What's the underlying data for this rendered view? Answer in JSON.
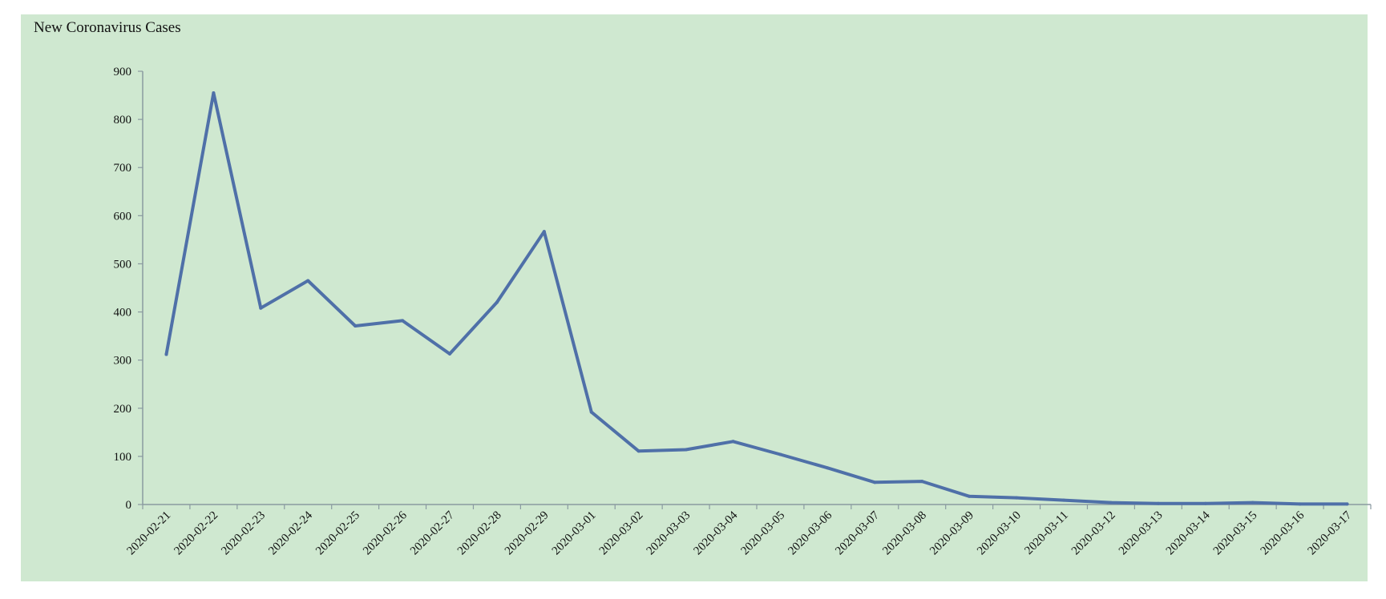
{
  "chart_data": {
    "type": "line",
    "title": "New Coronavirus Cases",
    "xlabel": "",
    "ylabel": "",
    "ylim": [
      0,
      900
    ],
    "y_ticks": [
      0,
      100,
      200,
      300,
      400,
      500,
      600,
      700,
      800,
      900
    ],
    "categories": [
      "2020-02-21",
      "2020-02-22",
      "2020-02-23",
      "2020-02-24",
      "2020-02-25",
      "2020-02-26",
      "2020-02-27",
      "2020-02-28",
      "2020-02-29",
      "2020-03-01",
      "2020-03-02",
      "2020-03-03",
      "2020-03-04",
      "2020-03-05",
      "2020-03-06",
      "2020-03-07",
      "2020-03-08",
      "2020-03-09",
      "2020-03-10",
      "2020-03-11",
      "2020-03-12",
      "2020-03-13",
      "2020-03-14",
      "2020-03-15",
      "2020-03-16",
      "2020-03-17"
    ],
    "series": [
      {
        "values": [
          312,
          855,
          408,
          465,
          371,
          382,
          313,
          420,
          567,
          192,
          111,
          114,
          131,
          104,
          76,
          46,
          48,
          17,
          14,
          9,
          4,
          2,
          2,
          4,
          1,
          1
        ]
      }
    ],
    "grid": false,
    "colors": {
      "line": "#4f70a8",
      "background": "#cfe8d0",
      "axis": "#8a9aa0"
    }
  }
}
